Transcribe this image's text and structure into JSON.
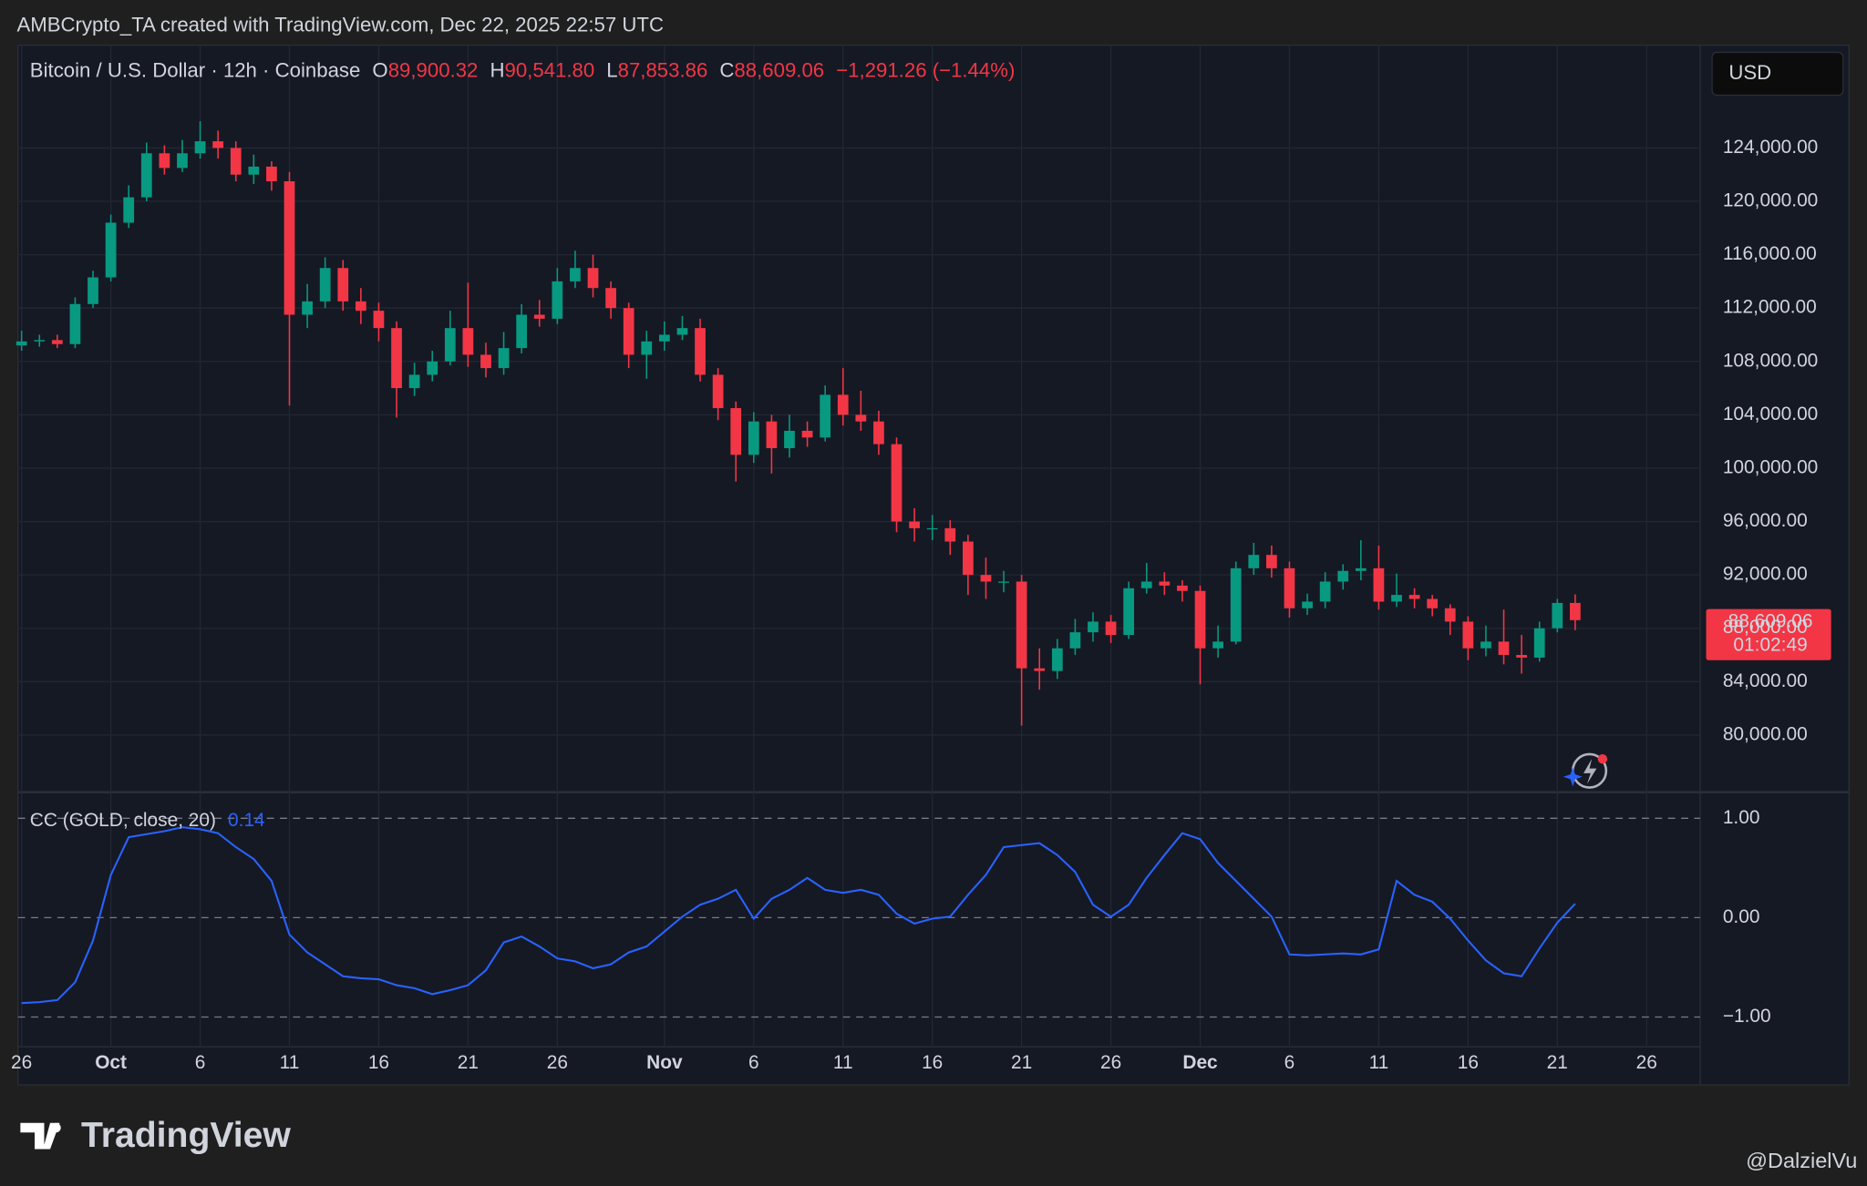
{
  "header": {
    "caption": "AMBCrypto_TA created with TradingView.com, Dec 22, 2025 22:57 UTC",
    "symbol": "Bitcoin / U.S. Dollar · 12h · Coinbase",
    "open_label": "O",
    "open": "89,900.32",
    "high_label": "H",
    "high": "90,541.80",
    "low_label": "L",
    "low": "87,853.86",
    "close_label": "C",
    "close": "88,609.06",
    "change": "−1,291.26 (−1.44%)",
    "currency": "USD",
    "last_price": "88,609.06",
    "countdown": "01:02:49"
  },
  "footer": {
    "logo": "TradingView",
    "credit": "@DalzielVu"
  },
  "chart_data": [
    {
      "type": "candlestick",
      "up_color": "#089981",
      "down_color": "#f23645",
      "grid": true,
      "x": [
        0,
        1,
        2,
        3,
        4,
        5,
        6,
        7,
        8,
        9,
        10,
        11,
        12,
        13,
        14,
        15,
        16,
        17,
        18,
        19,
        20,
        21,
        22,
        23,
        24,
        25,
        26,
        27,
        28,
        29,
        30,
        31,
        32,
        33,
        34,
        35,
        36,
        37,
        38,
        39,
        40,
        41,
        42,
        43,
        44,
        45,
        46,
        47,
        48,
        49,
        50,
        51,
        52,
        53,
        54,
        55,
        56,
        57,
        58,
        59,
        60,
        61,
        62,
        63,
        64,
        65,
        66,
        67,
        68,
        69,
        70,
        71,
        72,
        73,
        74,
        75,
        76,
        77,
        78,
        79,
        80,
        81,
        82,
        83,
        84,
        85,
        86,
        87
      ],
      "open": [
        109200,
        109500,
        109600,
        109300,
        112300,
        114300,
        118400,
        120300,
        123600,
        122500,
        123600,
        124500,
        124000,
        122000,
        122600,
        121500,
        111500,
        112500,
        115000,
        112500,
        111800,
        110500,
        106000,
        107000,
        108000,
        110500,
        108500,
        107500,
        109000,
        111500,
        111200,
        114000,
        115000,
        113500,
        112000,
        108500,
        109500,
        110000,
        110500,
        107000,
        104500,
        101000,
        103500,
        101500,
        102800,
        102300,
        105500,
        104000,
        103500,
        101800,
        96000,
        95500,
        95500,
        94500,
        92000,
        91500,
        91500,
        85000,
        84800,
        86500,
        87700,
        88500,
        87500,
        91000,
        91500,
        91200,
        90800,
        86500,
        87000,
        92500,
        93500,
        92500,
        89500,
        90000,
        91500,
        92300,
        92500,
        90000,
        90500,
        90200,
        89500,
        88500,
        86500,
        87000,
        86000,
        85800,
        88000,
        89900.32
      ],
      "high": [
        110300,
        110000,
        110000,
        112800,
        114800,
        119000,
        121200,
        124400,
        124200,
        124600,
        126000,
        125300,
        124500,
        123500,
        123000,
        122200,
        113800,
        115800,
        115600,
        113500,
        112400,
        111000,
        107900,
        108800,
        111800,
        113900,
        109400,
        110200,
        112300,
        112600,
        115000,
        116300,
        116000,
        114000,
        112400,
        110300,
        111000,
        111400,
        111200,
        107500,
        105000,
        104200,
        104000,
        104000,
        103500,
        106200,
        107500,
        105800,
        104300,
        102300,
        97000,
        96500,
        96100,
        95000,
        93300,
        92300,
        92000,
        86500,
        87200,
        88700,
        89200,
        89000,
        91500,
        92900,
        92200,
        91600,
        91200,
        88200,
        93000,
        94400,
        94200,
        93000,
        90600,
        92200,
        92800,
        94600,
        94200,
        92100,
        91000,
        90500,
        89800,
        88900,
        88200,
        89400,
        87500,
        88500,
        90200,
        90541.8
      ],
      "low": [
        108800,
        109100,
        109000,
        109000,
        112000,
        114000,
        118000,
        120000,
        122000,
        122200,
        123200,
        123200,
        121500,
        121300,
        120800,
        104700,
        110500,
        112000,
        111800,
        110800,
        109500,
        103800,
        105400,
        106500,
        107700,
        107600,
        106800,
        107000,
        108600,
        110600,
        110800,
        113500,
        112800,
        111200,
        107500,
        106700,
        108800,
        109600,
        106500,
        103600,
        99000,
        100400,
        99600,
        100800,
        101600,
        102000,
        103200,
        102800,
        101000,
        95200,
        94500,
        94600,
        93500,
        90500,
        90200,
        90700,
        80700,
        83400,
        84200,
        86000,
        87000,
        86900,
        87200,
        90600,
        90500,
        90000,
        83800,
        85800,
        86800,
        92000,
        91800,
        88800,
        89000,
        89500,
        90900,
        91600,
        89400,
        89600,
        89500,
        88900,
        87500,
        85600,
        85900,
        85300,
        84600,
        85500,
        87700,
        87853.86
      ],
      "close": [
        109500,
        109600,
        109300,
        112300,
        114300,
        118400,
        120300,
        123600,
        122500,
        123600,
        124500,
        124000,
        122000,
        122600,
        121500,
        111500,
        112500,
        115000,
        112500,
        111800,
        110500,
        106000,
        107000,
        108000,
        110500,
        108500,
        107500,
        109000,
        111500,
        111200,
        114000,
        115000,
        113500,
        112000,
        108500,
        109500,
        110000,
        110500,
        107000,
        104500,
        101000,
        103500,
        101500,
        102800,
        102300,
        105500,
        104000,
        103500,
        101800,
        96000,
        95500,
        95500,
        94500,
        92000,
        91500,
        91500,
        85000,
        84800,
        86500,
        87700,
        88500,
        87500,
        91000,
        91500,
        91200,
        90800,
        86500,
        87000,
        92500,
        93500,
        92500,
        89500,
        90000,
        91500,
        92300,
        92500,
        90000,
        90500,
        90200,
        89500,
        88500,
        86500,
        87000,
        86000,
        85800,
        88000,
        89900,
        88609.06
      ],
      "xlim": [
        -0.2,
        94
      ],
      "ylim": [
        75800,
        131700
      ],
      "yticks": [
        {
          "value": 80000,
          "label": "80,000.00"
        },
        {
          "value": 84000,
          "label": "84,000.00"
        },
        {
          "value": 88000,
          "label": "88,000.00"
        },
        {
          "value": 92000,
          "label": "92,000.00"
        },
        {
          "value": 96000,
          "label": "96,000.00"
        },
        {
          "value": 100000,
          "label": "100,000.00"
        },
        {
          "value": 104000,
          "label": "104,000.00"
        },
        {
          "value": 108000,
          "label": "108,000.00"
        },
        {
          "value": 112000,
          "label": "112,000.00"
        },
        {
          "value": 116000,
          "label": "116,000.00"
        },
        {
          "value": 120000,
          "label": "120,000.00"
        },
        {
          "value": 124000,
          "label": "124,000.00"
        }
      ],
      "xticks": [
        {
          "value": 0,
          "label": "26"
        },
        {
          "value": 5,
          "label": "Oct"
        },
        {
          "value": 10,
          "label": "6"
        },
        {
          "value": 15,
          "label": "11"
        },
        {
          "value": 20,
          "label": "16"
        },
        {
          "value": 25,
          "label": "21"
        },
        {
          "value": 30,
          "label": "26"
        },
        {
          "value": 36,
          "label": "Nov"
        },
        {
          "value": 41,
          "label": "6"
        },
        {
          "value": 46,
          "label": "11"
        },
        {
          "value": 51,
          "label": "16"
        },
        {
          "value": 56,
          "label": "21"
        },
        {
          "value": 61,
          "label": "26"
        },
        {
          "value": 66,
          "label": "Dec"
        },
        {
          "value": 71,
          "label": "6"
        },
        {
          "value": 76,
          "label": "11"
        },
        {
          "value": 81,
          "label": "16"
        },
        {
          "value": 86,
          "label": "21"
        },
        {
          "value": 91,
          "label": "26"
        }
      ]
    },
    {
      "type": "line",
      "title": "CC (GOLD, close, 20)",
      "color": "#2962ff",
      "x": [
        0,
        1,
        2,
        3,
        4,
        5,
        6,
        7,
        8,
        9,
        10,
        11,
        12,
        13,
        14,
        15,
        16,
        17,
        18,
        19,
        20,
        21,
        22,
        23,
        24,
        25,
        26,
        27,
        28,
        29,
        30,
        31,
        32,
        33,
        34,
        35,
        36,
        37,
        38,
        39,
        40,
        41,
        42,
        43,
        44,
        45,
        46,
        47,
        48,
        49,
        50,
        51,
        52,
        53,
        54,
        55,
        56,
        57,
        58,
        59,
        60,
        61,
        62,
        63,
        64,
        65,
        66,
        67,
        68,
        69,
        70,
        71,
        72,
        73,
        74,
        75,
        76,
        77,
        78,
        79,
        80,
        81,
        82,
        83,
        84,
        85,
        86,
        87
      ],
      "values": [
        -0.86,
        -0.85,
        -0.83,
        -0.65,
        -0.23,
        0.43,
        0.81,
        0.84,
        0.87,
        0.91,
        0.89,
        0.85,
        0.71,
        0.59,
        0.37,
        -0.17,
        -0.35,
        -0.47,
        -0.59,
        -0.61,
        -0.62,
        -0.68,
        -0.71,
        -0.77,
        -0.73,
        -0.68,
        -0.53,
        -0.25,
        -0.19,
        -0.29,
        -0.41,
        -0.44,
        -0.51,
        -0.47,
        -0.35,
        -0.29,
        -0.14,
        0.01,
        0.13,
        0.19,
        0.28,
        -0.01,
        0.19,
        0.28,
        0.4,
        0.28,
        0.25,
        0.28,
        0.23,
        0.04,
        -0.06,
        -0.01,
        0.01,
        0.23,
        0.43,
        0.71,
        0.73,
        0.75,
        0.63,
        0.46,
        0.13,
        0.01,
        0.13,
        0.4,
        0.63,
        0.85,
        0.79,
        0.55,
        0.37,
        0.19,
        0.01,
        -0.37,
        -0.38,
        -0.37,
        -0.36,
        -0.37,
        -0.32,
        0.37,
        0.23,
        0.16,
        -0.01,
        -0.23,
        -0.43,
        -0.56,
        -0.59,
        -0.31,
        -0.05,
        0.14
      ],
      "xlim": [
        -0.2,
        94
      ],
      "ylim": [
        -1.3,
        1.25
      ],
      "yticks": [
        {
          "value": 1,
          "label": "1.00"
        },
        {
          "value": 0,
          "label": "0.00"
        },
        {
          "value": -1,
          "label": "−1.00"
        }
      ]
    }
  ]
}
